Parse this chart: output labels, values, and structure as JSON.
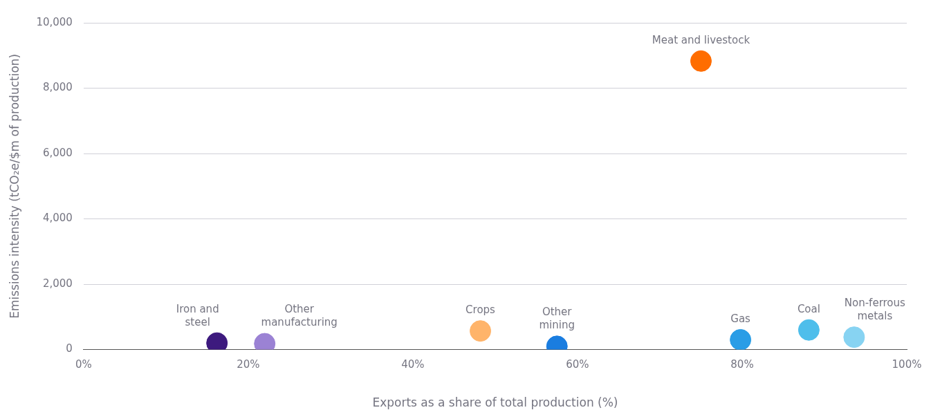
{
  "chart_data": {
    "type": "scatter",
    "xlabel": "Exports as a share of total production (%)",
    "ylabel": "Emissions intensity (tCO₂e/$m of production)",
    "xlim": [
      0,
      100
    ],
    "xticks": [
      {
        "value": 0,
        "label": "0%"
      },
      {
        "value": 20,
        "label": "20%"
      },
      {
        "value": 40,
        "label": "40%"
      },
      {
        "value": 60,
        "label": "60%"
      },
      {
        "value": 80,
        "label": "80%"
      },
      {
        "value": 100,
        "label": "100%"
      }
    ],
    "ylim": [
      0,
      10000
    ],
    "yticks": [
      0,
      {
        "value": 2000,
        "label": "2,000"
      },
      {
        "value": 4000,
        "label": "4,000"
      },
      {
        "value": 6000,
        "label": "6,000"
      },
      {
        "value": 8000,
        "label": "8,000"
      },
      {
        "value": 10000,
        "label": "10,000"
      }
    ],
    "grid": "y",
    "legend": false,
    "marker": "circle",
    "series": [
      {
        "name": "Iron and steel",
        "color": "#3d1a7e",
        "x": [
          16.2
        ],
        "values": [
          200
        ]
      },
      {
        "name": "Other manufacturing",
        "color": "#9b82d4",
        "x": [
          22
        ],
        "values": [
          180
        ]
      },
      {
        "name": "Crops",
        "color": "#ffb46a",
        "x": [
          48.2
        ],
        "values": [
          570
        ]
      },
      {
        "name": "Other mining",
        "color": "#1a7de0",
        "x": [
          57.5
        ],
        "values": [
          100
        ]
      },
      {
        "name": "Meat and livestock",
        "color": "#ff6d00",
        "x": [
          75
        ],
        "values": [
          8830
        ]
      },
      {
        "name": "Gas",
        "color": "#2a9de6",
        "x": [
          79.8
        ],
        "values": [
          300
        ]
      },
      {
        "name": "Coal",
        "color": "#4ebeeb",
        "x": [
          88.1
        ],
        "values": [
          600
        ]
      },
      {
        "name": "Non-ferrous metals",
        "color": "#87d3f2",
        "x": [
          93.6
        ],
        "values": [
          380
        ]
      }
    ]
  }
}
